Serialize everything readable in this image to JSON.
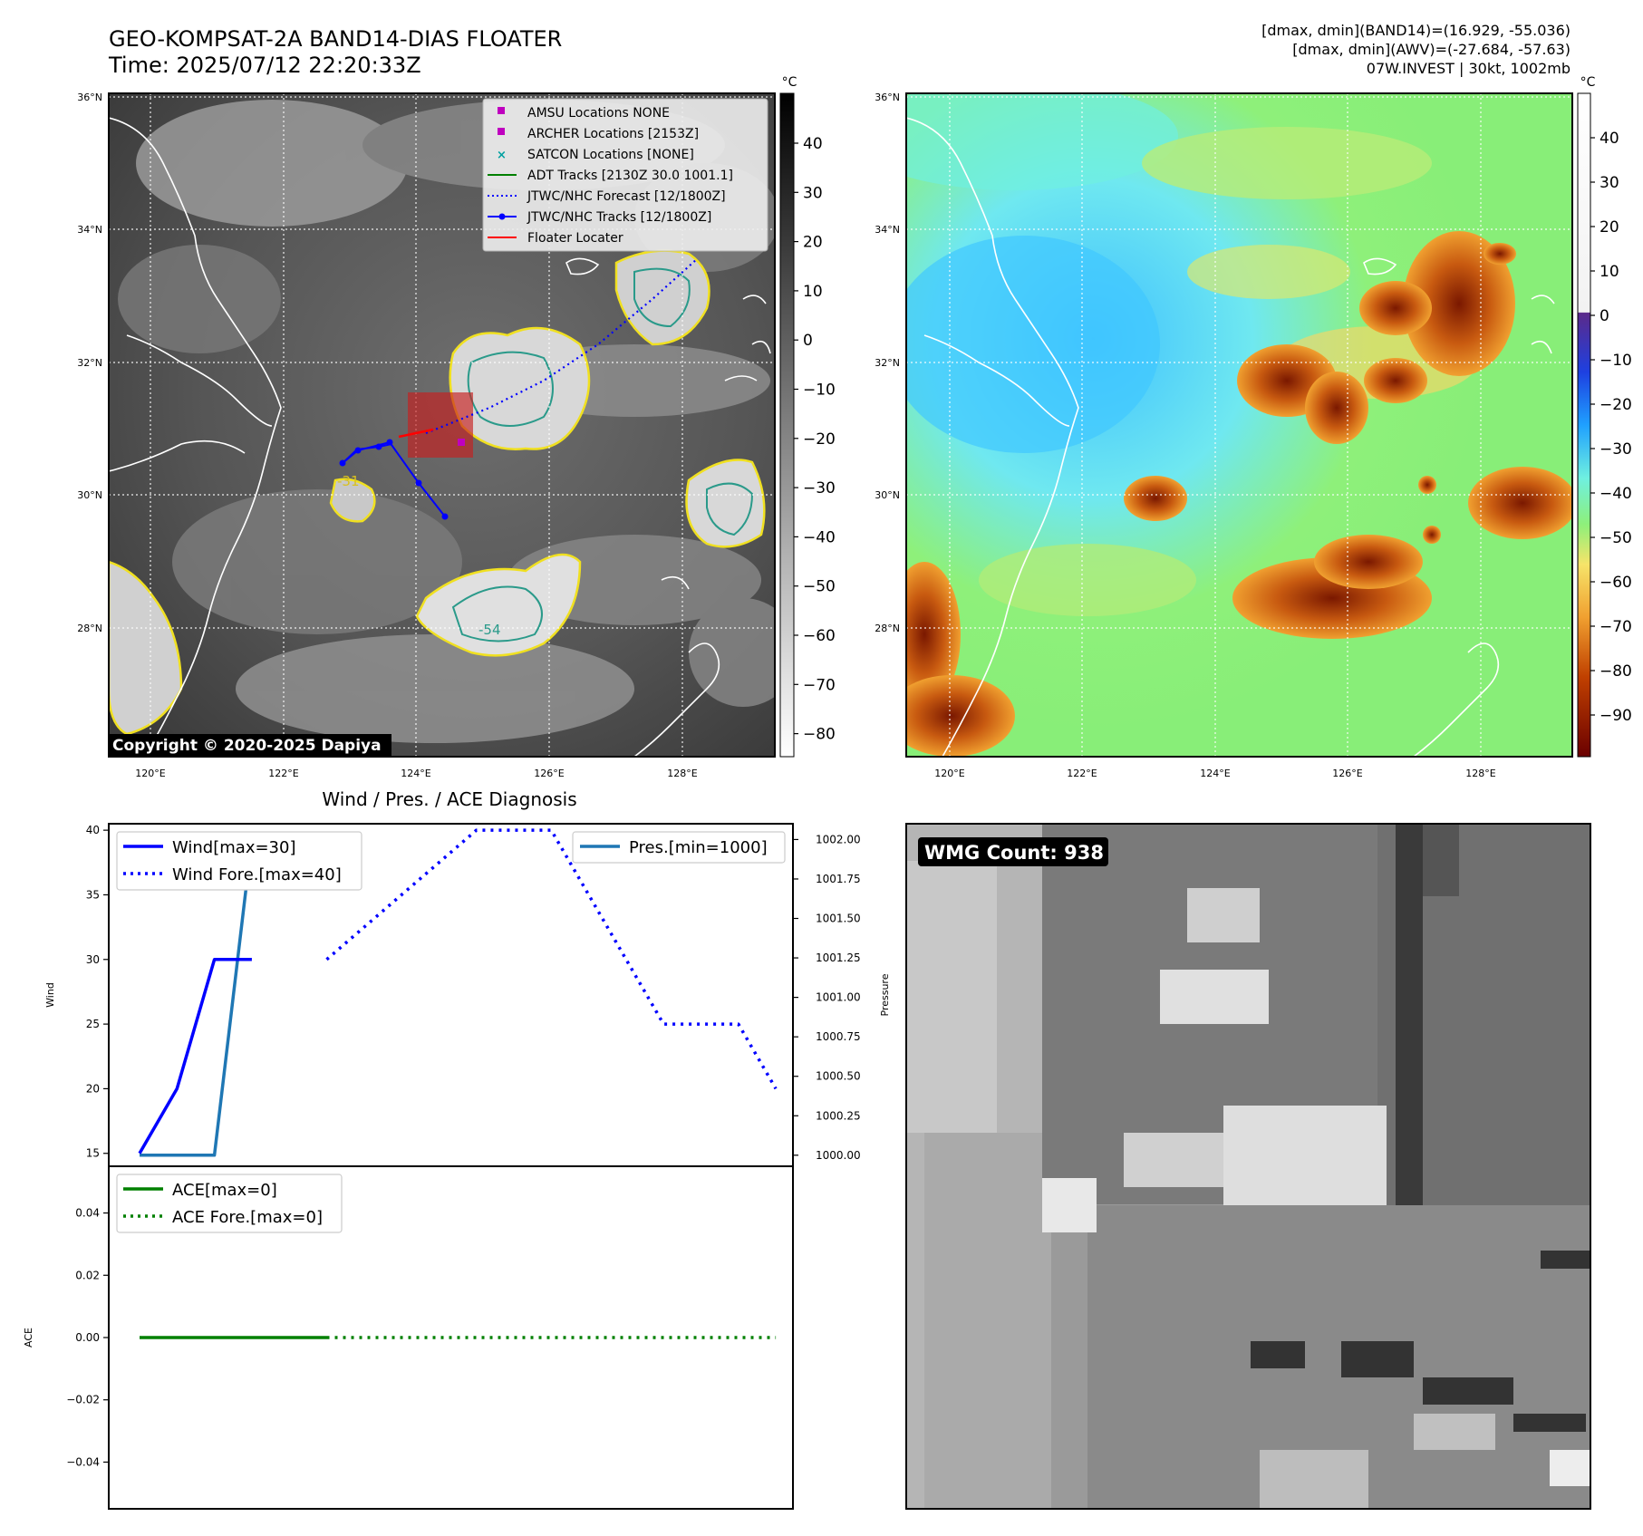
{
  "header": {
    "title_line1": "GEO-KOMPSAT-2A BAND14-DIAS FLOATER",
    "title_line2": "Time: 2025/07/12 22:20:33Z",
    "info_line1": "[dmax, dmin](BAND14)=(16.929, -55.036)",
    "info_line2": "[dmax, dmin](AWV)=(-27.684, -57.63)",
    "info_line3": "07W.INVEST | 30kt, 1002mb"
  },
  "ir_map": {
    "copyright": "Copyright © 2020-2025 Dapiya",
    "lat_labels": [
      "36°N",
      "34°N",
      "32°N",
      "30°N",
      "28°N"
    ],
    "lon_labels": [
      "120°E",
      "122°E",
      "124°E",
      "126°E",
      "128°E"
    ],
    "contour_labels": [
      "-31",
      "-54"
    ],
    "legend": [
      {
        "label": "AMSU Locations NONE",
        "color": "#bf00bf",
        "marker": "square"
      },
      {
        "label": "ARCHER Locations [2153Z]",
        "color": "#bf00bf",
        "marker": "square"
      },
      {
        "label": "SATCON Locations [NONE]",
        "color": "#00a0a0",
        "marker": "x"
      },
      {
        "label": "ADT Tracks [2130Z 30.0 1001.1]",
        "color": "#008000",
        "marker": "solid"
      },
      {
        "label": "JTWC/NHC Forecast [12/1800Z]",
        "color": "#0000ff",
        "marker": "dotted"
      },
      {
        "label": "JTWC/NHC Tracks [12/1800Z]",
        "color": "#0000ff",
        "marker": "dot-line"
      },
      {
        "label": "Floater Locater",
        "color": "#ff0000",
        "marker": "solid"
      }
    ],
    "colorbar": {
      "unit": "°C",
      "ticks": [
        "40",
        "30",
        "20",
        "10",
        "0",
        "−10",
        "−20",
        "−30",
        "−40",
        "−50",
        "−60",
        "−70",
        "−80"
      ]
    }
  },
  "awv_map": {
    "lat_labels": [
      "36°N",
      "34°N",
      "32°N",
      "30°N",
      "28°N"
    ],
    "lon_labels": [
      "120°E",
      "122°E",
      "124°E",
      "126°E",
      "128°E"
    ],
    "colorbar": {
      "unit": "°C",
      "ticks": [
        "40",
        "30",
        "20",
        "10",
        "0",
        "−10",
        "−20",
        "−30",
        "−40",
        "−50",
        "−60",
        "−70",
        "−80",
        "−90"
      ]
    }
  },
  "diag": {
    "title": "Wind / Pres. / ACE Diagnosis",
    "wind_ylabel": "Wind",
    "pres_ylabel": "Pressure",
    "ace_ylabel": "ACE",
    "legend_wind": "Wind[max=30]",
    "legend_wind_fore": "Wind Fore.[max=40]",
    "legend_pres": "Pres.[min=1000]",
    "legend_ace": "ACE[max=0]",
    "legend_ace_fore": "ACE Fore.[max=0]"
  },
  "wmg": {
    "label": "WMG Count: 938"
  },
  "chart_data": [
    {
      "type": "line",
      "title": "Wind / Pres. / ACE Diagnosis",
      "ylabel": "Wind",
      "ylim": [
        14,
        40.5
      ],
      "yticks": [
        15,
        20,
        25,
        30,
        35,
        40
      ],
      "series": [
        {
          "name": "Wind[max=30]",
          "x": [
            0,
            1,
            2,
            3
          ],
          "values": [
            15,
            20,
            30,
            30
          ],
          "color": "#0000ff",
          "style": "solid"
        },
        {
          "name": "Wind Fore.[max=40]",
          "x": [
            5,
            9,
            11,
            14,
            16,
            17
          ],
          "values": [
            30,
            40,
            40,
            25,
            25,
            20
          ],
          "color": "#0000ff",
          "style": "dotted"
        }
      ]
    },
    {
      "type": "line",
      "ylabel": "Pressure",
      "ylim": [
        999.93,
        1002.1
      ],
      "yticks": [
        1000.0,
        1000.25,
        1000.5,
        1000.75,
        1001.0,
        1001.25,
        1001.5,
        1001.75,
        1002.0
      ],
      "series": [
        {
          "name": "Pres.[min=1000]",
          "x": [
            0,
            2,
            3,
            5
          ],
          "values": [
            1000,
            1000,
            1002,
            1002
          ],
          "color": "#1f77b4",
          "style": "solid"
        }
      ]
    },
    {
      "type": "line",
      "ylabel": "ACE",
      "ylim": [
        -0.055,
        0.055
      ],
      "yticks": [
        0.04,
        0.02,
        0.0,
        -0.02,
        -0.04
      ],
      "series": [
        {
          "name": "ACE[max=0]",
          "x": [
            0,
            5
          ],
          "values": [
            0,
            0
          ],
          "color": "#008000",
          "style": "solid"
        },
        {
          "name": "ACE Fore.[max=0]",
          "x": [
            5,
            17
          ],
          "values": [
            0,
            0
          ],
          "color": "#008000",
          "style": "dotted"
        }
      ]
    }
  ]
}
